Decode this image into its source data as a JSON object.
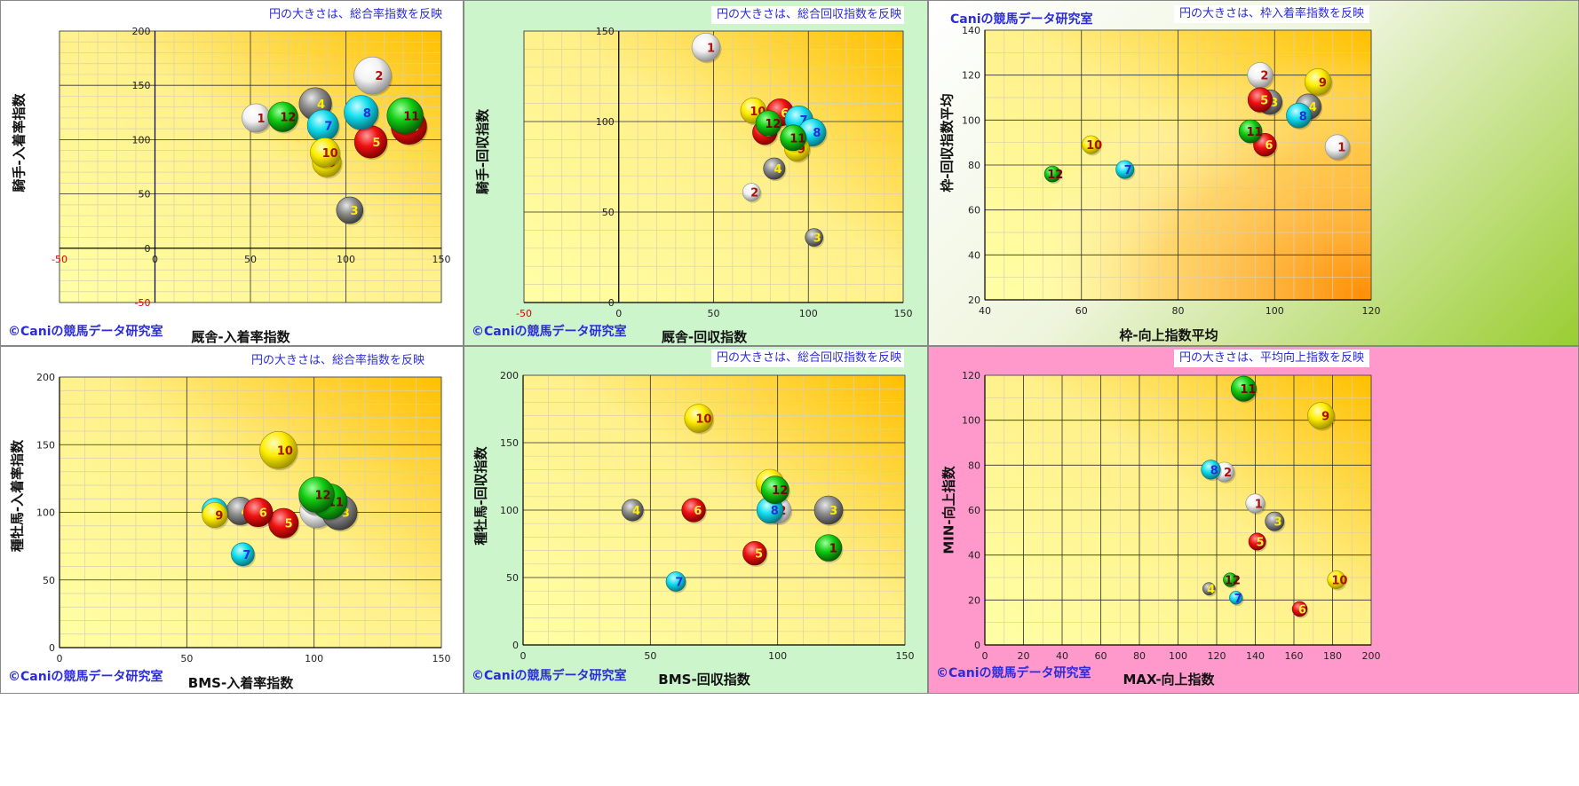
{
  "copyright": "©Caniの競馬データ研究室",
  "brand": "Caniの競馬データ研究室",
  "colors": {
    "red": "#ee1111",
    "green": "#11cc11",
    "cyan": "#11ddee",
    "gray": "#8c8c8c",
    "yellow": "#ffee00",
    "white": "#ffffff",
    "label_blue": "#2b2bd9"
  },
  "chart_data": [
    {
      "type": "scatter",
      "note": "円の大きさは、総合率指数を反映",
      "xlabel": "厩舎-入着率指数",
      "ylabel": "騎手-入着率指数",
      "xlim": [
        -50,
        150
      ],
      "ylim": [
        -50,
        200
      ],
      "xticks": [
        "-50",
        "0",
        "50",
        "100",
        "150"
      ],
      "yticks": [
        "-50",
        "0",
        "50",
        "100",
        "150",
        "200"
      ],
      "grid": true,
      "points": [
        {
          "label": "1",
          "x": 53,
          "y": 120,
          "color": "white"
        },
        {
          "label": "2",
          "x": 114,
          "y": 159,
          "color": "white"
        },
        {
          "label": "3",
          "x": 102,
          "y": 35,
          "color": "gray"
        },
        {
          "label": "4",
          "x": 84,
          "y": 133,
          "color": "gray"
        },
        {
          "label": "5",
          "x": 113,
          "y": 98,
          "color": "red"
        },
        {
          "label": "6",
          "x": 133,
          "y": 112,
          "color": "red"
        },
        {
          "label": "7",
          "x": 88,
          "y": 113,
          "color": "cyan"
        },
        {
          "label": "8",
          "x": 108,
          "y": 125,
          "color": "cyan"
        },
        {
          "label": "9",
          "x": 90,
          "y": 79,
          "color": "yellow"
        },
        {
          "label": "10",
          "x": 89,
          "y": 88,
          "color": "yellow"
        },
        {
          "label": "11",
          "x": 131,
          "y": 122,
          "color": "green"
        },
        {
          "label": "12",
          "x": 67,
          "y": 121,
          "color": "green"
        }
      ]
    },
    {
      "type": "scatter",
      "note": "円の大きさは、総合回収指数を反映",
      "xlabel": "厩舎-回収指数",
      "ylabel": "騎手-回収指数",
      "xlim": [
        -50,
        150
      ],
      "ylim": [
        0,
        150
      ],
      "xticks": [
        "-50",
        "0",
        "50",
        "100",
        "150"
      ],
      "yticks": [
        "0",
        "50",
        "100",
        "150"
      ],
      "grid": true,
      "points": [
        {
          "label": "1",
          "x": 46,
          "y": 141,
          "color": "white"
        },
        {
          "label": "2",
          "x": 70,
          "y": 61,
          "color": "white"
        },
        {
          "label": "3",
          "x": 103,
          "y": 36,
          "color": "gray"
        },
        {
          "label": "4",
          "x": 82,
          "y": 74,
          "color": "gray"
        },
        {
          "label": "5",
          "x": 77,
          "y": 94,
          "color": "red"
        },
        {
          "label": "6",
          "x": 85,
          "y": 105,
          "color": "red"
        },
        {
          "label": "7",
          "x": 95,
          "y": 101,
          "color": "cyan"
        },
        {
          "label": "8",
          "x": 102,
          "y": 94,
          "color": "cyan"
        },
        {
          "label": "9",
          "x": 94,
          "y": 85,
          "color": "yellow"
        },
        {
          "label": "10",
          "x": 71,
          "y": 106,
          "color": "yellow"
        },
        {
          "label": "11",
          "x": 92,
          "y": 91,
          "color": "green"
        },
        {
          "label": "12",
          "x": 79,
          "y": 99,
          "color": "green"
        }
      ]
    },
    {
      "type": "scatter",
      "note": "円の大きさは、枠入着率指数を反映",
      "xlabel": "枠-向上指数平均",
      "ylabel": "枠-回収指数平均",
      "xlim": [
        40,
        120
      ],
      "ylim": [
        20,
        140
      ],
      "xticks": [
        "40",
        "60",
        "80",
        "100",
        "120"
      ],
      "yticks": [
        "20",
        "40",
        "60",
        "80",
        "100",
        "120",
        "140"
      ],
      "grid": true,
      "points": [
        {
          "label": "1",
          "x": 113,
          "y": 88,
          "color": "white"
        },
        {
          "label": "2",
          "x": 97,
          "y": 120,
          "color": "white"
        },
        {
          "label": "3",
          "x": 99,
          "y": 108,
          "color": "gray"
        },
        {
          "label": "4",
          "x": 107,
          "y": 106,
          "color": "gray"
        },
        {
          "label": "5",
          "x": 97,
          "y": 109,
          "color": "red"
        },
        {
          "label": "6",
          "x": 98,
          "y": 89,
          "color": "red"
        },
        {
          "label": "7",
          "x": 69,
          "y": 78,
          "color": "cyan"
        },
        {
          "label": "8",
          "x": 105,
          "y": 102,
          "color": "cyan"
        },
        {
          "label": "9",
          "x": 109,
          "y": 117,
          "color": "yellow"
        },
        {
          "label": "10",
          "x": 62,
          "y": 89,
          "color": "yellow"
        },
        {
          "label": "11",
          "x": 95,
          "y": 95,
          "color": "green"
        },
        {
          "label": "12",
          "x": 54,
          "y": 76,
          "color": "green"
        }
      ]
    },
    {
      "type": "scatter",
      "note": "円の大きさは、総合率指数を反映",
      "xlabel": "BMS-入着率指数",
      "ylabel": "種牡馬-入着率指数",
      "xlim": [
        0,
        150
      ],
      "ylim": [
        0,
        200
      ],
      "xticks": [
        "0",
        "50",
        "100",
        "150"
      ],
      "yticks": [
        "0",
        "50",
        "100",
        "150",
        "200"
      ],
      "grid": true,
      "points": [
        {
          "label": "1",
          "x": 101,
          "y": 101,
          "color": "white"
        },
        {
          "label": "2",
          "x": 101,
          "y": 111,
          "color": "white"
        },
        {
          "label": "3",
          "x": 110,
          "y": 100,
          "color": "gray"
        },
        {
          "label": "4",
          "x": 71,
          "y": 101,
          "color": "gray"
        },
        {
          "label": "5",
          "x": 88,
          "y": 92,
          "color": "red"
        },
        {
          "label": "6",
          "x": 78,
          "y": 100,
          "color": "red"
        },
        {
          "label": "7",
          "x": 72,
          "y": 69,
          "color": "cyan"
        },
        {
          "label": "8",
          "x": 61,
          "y": 101,
          "color": "cyan"
        },
        {
          "label": "9",
          "x": 61,
          "y": 98,
          "color": "yellow"
        },
        {
          "label": "10",
          "x": 86,
          "y": 146,
          "color": "yellow"
        },
        {
          "label": "11",
          "x": 106,
          "y": 108,
          "color": "green"
        },
        {
          "label": "12",
          "x": 101,
          "y": 113,
          "color": "green"
        }
      ]
    },
    {
      "type": "scatter",
      "note": "円の大きさは、総合回収指数を反映",
      "xlabel": "BMS-回収指数",
      "ylabel": "種牡馬-回収指数",
      "xlim": [
        0,
        150
      ],
      "ylim": [
        0,
        200
      ],
      "xticks": [
        "0",
        "50",
        "100",
        "150"
      ],
      "yticks": [
        "0",
        "50",
        "100",
        "150",
        "200"
      ],
      "grid": true,
      "points": [
        {
          "label": "1",
          "x": 120,
          "y": 72,
          "color": "green"
        },
        {
          "label": "2",
          "x": 100,
          "y": 100,
          "color": "white"
        },
        {
          "label": "3",
          "x": 120,
          "y": 100,
          "color": "gray"
        },
        {
          "label": "4",
          "x": 43,
          "y": 100,
          "color": "gray"
        },
        {
          "label": "5",
          "x": 91,
          "y": 68,
          "color": "red"
        },
        {
          "label": "6",
          "x": 67,
          "y": 100,
          "color": "red"
        },
        {
          "label": "7",
          "x": 60,
          "y": 47,
          "color": "cyan"
        },
        {
          "label": "8",
          "x": 97,
          "y": 100,
          "color": "cyan"
        },
        {
          "label": "9",
          "x": 97,
          "y": 120,
          "color": "yellow"
        },
        {
          "label": "10",
          "x": 69,
          "y": 168,
          "color": "yellow"
        },
        {
          "label": "12",
          "x": 99,
          "y": 115,
          "color": "green"
        }
      ]
    },
    {
      "type": "scatter",
      "note": "円の大きさは、平均向上指数を反映",
      "xlabel": "MAX-向上指数",
      "ylabel": "MIN-向上指数",
      "xlim": [
        0,
        200
      ],
      "ylim": [
        0,
        120
      ],
      "xticks": [
        "0",
        "20",
        "40",
        "60",
        "80",
        "100",
        "120",
        "140",
        "160",
        "180",
        "200"
      ],
      "yticks": [
        "0",
        "20",
        "40",
        "60",
        "80",
        "100",
        "120"
      ],
      "grid": true,
      "points": [
        {
          "label": "1",
          "x": 140,
          "y": 63,
          "color": "white"
        },
        {
          "label": "2",
          "x": 124,
          "y": 77,
          "color": "white"
        },
        {
          "label": "3",
          "x": 150,
          "y": 55,
          "color": "gray"
        },
        {
          "label": "4",
          "x": 116,
          "y": 25,
          "color": "gray"
        },
        {
          "label": "5",
          "x": 141,
          "y": 46,
          "color": "red"
        },
        {
          "label": "6",
          "x": 163,
          "y": 16,
          "color": "red"
        },
        {
          "label": "7",
          "x": 130,
          "y": 21,
          "color": "cyan"
        },
        {
          "label": "8",
          "x": 117,
          "y": 78,
          "color": "cyan"
        },
        {
          "label": "9",
          "x": 174,
          "y": 102,
          "color": "yellow"
        },
        {
          "label": "10",
          "x": 182,
          "y": 29,
          "color": "yellow"
        },
        {
          "label": "11",
          "x": 134,
          "y": 114,
          "color": "green"
        },
        {
          "label": "12",
          "x": 127,
          "y": 29,
          "color": "green"
        }
      ]
    }
  ]
}
